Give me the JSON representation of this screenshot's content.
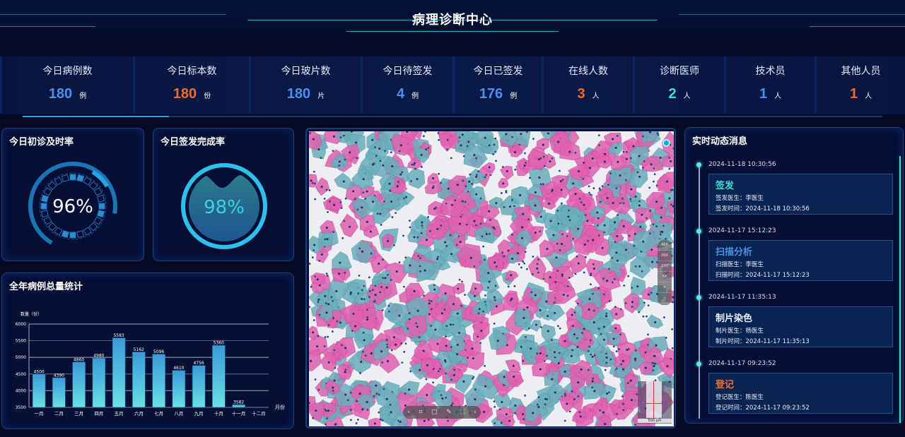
{
  "header": {
    "title": "病理诊断中心"
  },
  "stats": [
    {
      "label": "今日病例数",
      "value": "180",
      "unit": "例",
      "color": "#4a8ff0"
    },
    {
      "label": "今日标本数",
      "value": "180",
      "unit": "份",
      "color": "#f06a2a"
    },
    {
      "label": "今日玻片数",
      "value": "180",
      "unit": "片",
      "color": "#4a8ff0"
    },
    {
      "label": "今日待签发",
      "value": "4",
      "unit": "例",
      "color": "#4a8ff0"
    },
    {
      "label": "今日已签发",
      "value": "176",
      "unit": "例",
      "color": "#4a8ff0"
    },
    {
      "label": "在线人数",
      "value": "3",
      "unit": "人",
      "color": "#f06a2a"
    },
    {
      "label": "诊断医师",
      "value": "2",
      "unit": "人",
      "color": "#3ee0d0"
    },
    {
      "label": "技术员",
      "value": "1",
      "unit": "人",
      "color": "#4a8ff0"
    },
    {
      "label": "其他人员",
      "value": "1",
      "unit": "人",
      "color": "#f06a2a"
    }
  ],
  "stats_progress_percent": 17,
  "gauge1": {
    "title": "今日初诊及时率",
    "value": "96%",
    "percent": 96
  },
  "gauge2": {
    "title": "今日签发完成率",
    "value": "98%",
    "percent": 98
  },
  "chart_panel": {
    "title": "全年病例总量统计"
  },
  "chart_data": {
    "type": "bar",
    "ylabel": "数量（份）",
    "xlabel": "月份",
    "categories": [
      "一月",
      "二月",
      "三月",
      "四月",
      "五月",
      "六月",
      "七月",
      "八月",
      "九月",
      "十月",
      "十一月",
      "十二月"
    ],
    "values": [
      4500,
      4390,
      4860,
      4980,
      5583,
      5162,
      5096,
      4610,
      4756,
      5360,
      3582,
      null
    ],
    "ylim": [
      3500,
      6000
    ],
    "yticks": [
      3500,
      4000,
      4500,
      5000,
      5500,
      6000
    ],
    "grid": true
  },
  "viewer": {
    "zoom_levels": [
      "40X",
      "20X",
      "10X",
      "5X",
      "+",
      "−"
    ],
    "scale_label": "500 μm",
    "toolbar_icons": [
      "chevron-left-icon",
      "crop-icon",
      "rectangle-icon",
      "pen-icon",
      "fullscreen-icon",
      "chevron-right-icon"
    ]
  },
  "feed": {
    "title": "实时动态消息",
    "items": [
      {
        "time": "2024-11-18 10:30:56",
        "title": "签发",
        "color": "#3ee0d0",
        "line1": "签发医生：李医生",
        "line2": "签发时间：2024-11-18 10:30:56"
      },
      {
        "time": "2024-11-17 15:12:23",
        "title": "扫描分析",
        "color": "#4a90e8",
        "line1": "扫描医生：李医生",
        "line2": "扫描时间：2024-11-17 15:12:23"
      },
      {
        "time": "2024-11-17 11:35:13",
        "title": "制片染色",
        "color": "#e8eeff",
        "line1": "制片医生：杨医生",
        "line2": "制片时间：2024-11-17 11:35:13"
      },
      {
        "time": "2024-11-17 09:23:52",
        "title": "登记",
        "color": "#f07030",
        "line1": "登记医生：陈医生",
        "line2": "登记时间：2024-11-17 09:23:52"
      }
    ]
  }
}
